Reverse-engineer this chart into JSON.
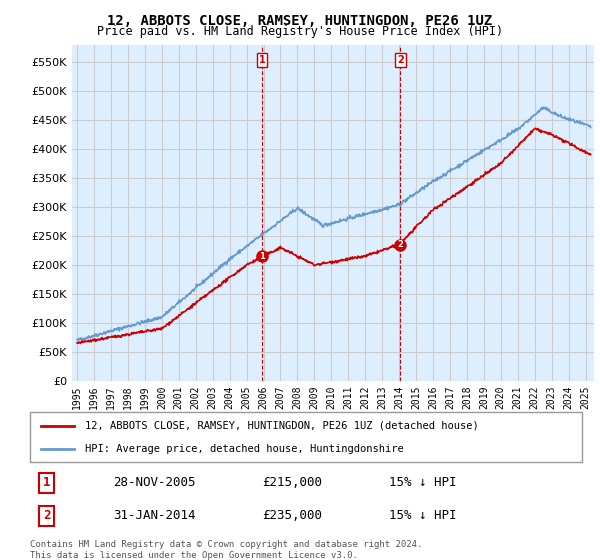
{
  "title": "12, ABBOTS CLOSE, RAMSEY, HUNTINGDON, PE26 1UZ",
  "subtitle": "Price paid vs. HM Land Registry's House Price Index (HPI)",
  "ylabel_ticks": [
    "£0",
    "£50K",
    "£100K",
    "£150K",
    "£200K",
    "£250K",
    "£300K",
    "£350K",
    "£400K",
    "£450K",
    "£500K",
    "£550K"
  ],
  "ytick_values": [
    0,
    50000,
    100000,
    150000,
    200000,
    250000,
    300000,
    350000,
    400000,
    450000,
    500000,
    550000
  ],
  "ylim": [
    0,
    580000
  ],
  "xlim_start": 1995.0,
  "xlim_end": 2025.5,
  "xtick_years": [
    1995,
    1996,
    1997,
    1998,
    1999,
    2000,
    2001,
    2002,
    2003,
    2004,
    2005,
    2006,
    2007,
    2008,
    2009,
    2010,
    2011,
    2012,
    2013,
    2014,
    2015,
    2016,
    2017,
    2018,
    2019,
    2020,
    2021,
    2022,
    2023,
    2024,
    2025
  ],
  "hpi_color": "#6699cc",
  "price_color": "#cc0000",
  "marker_color": "#cc0000",
  "sale1_x": 2005.91,
  "sale1_y": 215000,
  "sale1_label": "1",
  "sale1_date": "28-NOV-2005",
  "sale1_price": "£215,000",
  "sale1_hpi": "15% ↓ HPI",
  "sale2_x": 2014.08,
  "sale2_y": 235000,
  "sale2_label": "2",
  "sale2_date": "31-JAN-2014",
  "sale2_price": "£235,000",
  "sale2_hpi": "15% ↓ HPI",
  "legend_label_red": "12, ABBOTS CLOSE, RAMSEY, HUNTINGDON, PE26 1UZ (detached house)",
  "legend_label_blue": "HPI: Average price, detached house, Huntingdonshire",
  "footnote": "Contains HM Land Registry data © Crown copyright and database right 2024.\nThis data is licensed under the Open Government Licence v3.0.",
  "background_color": "#ffffff",
  "grid_color": "#cccccc",
  "plot_bg_color": "#ddeeff"
}
